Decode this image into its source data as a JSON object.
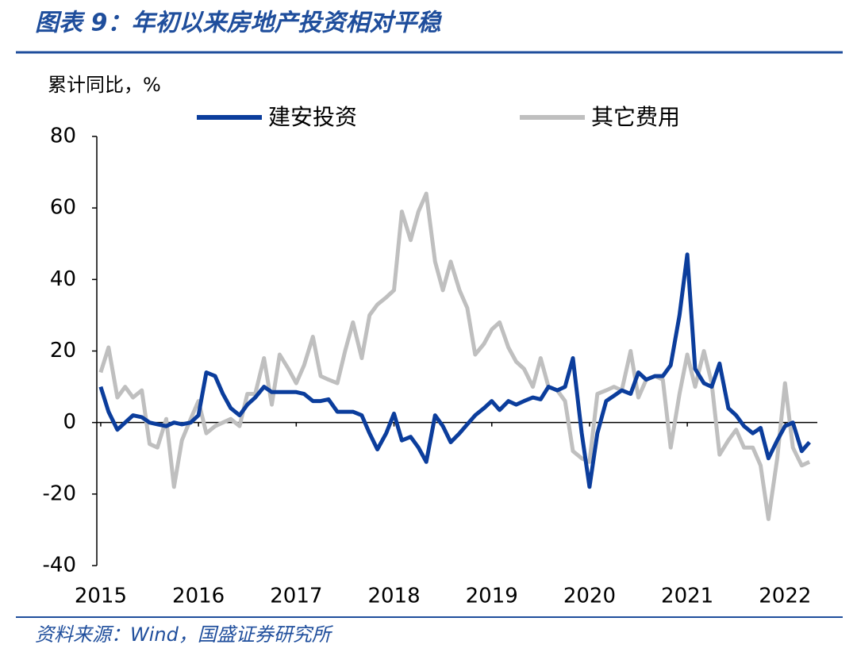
{
  "chart_data": {
    "type": "line",
    "title": "图表 9：年初以来房地产投资相对平稳",
    "y_label": "累计同比，%",
    "source": "资料来源：Wind，国盛证券研究所",
    "x": [
      2015,
      2015.08,
      2015.17,
      2015.25,
      2015.33,
      2015.42,
      2015.5,
      2015.58,
      2015.67,
      2015.75,
      2015.83,
      2015.92,
      2016,
      2016.08,
      2016.17,
      2016.25,
      2016.33,
      2016.42,
      2016.5,
      2016.58,
      2016.67,
      2016.75,
      2016.83,
      2016.92,
      2017,
      2017.08,
      2017.17,
      2017.25,
      2017.33,
      2017.42,
      2017.5,
      2017.58,
      2017.67,
      2017.75,
      2017.83,
      2017.92,
      2018,
      2018.08,
      2018.17,
      2018.25,
      2018.33,
      2018.42,
      2018.5,
      2018.58,
      2018.67,
      2018.75,
      2018.83,
      2018.92,
      2019,
      2019.08,
      2019.17,
      2019.25,
      2019.33,
      2019.42,
      2019.5,
      2019.58,
      2019.67,
      2019.75,
      2019.83,
      2019.92,
      2020,
      2020.08,
      2020.17,
      2020.25,
      2020.33,
      2020.42,
      2020.5,
      2020.58,
      2020.67,
      2020.75,
      2020.83,
      2020.92,
      2021,
      2021.08,
      2021.17,
      2021.25,
      2021.33,
      2021.42,
      2021.5,
      2021.58,
      2021.67,
      2021.75,
      2021.83,
      2021.92,
      2022,
      2022.08,
      2022.17,
      2022.25
    ],
    "series": [
      {
        "name": "建安投资",
        "color": "#0b3d9c",
        "values": [
          10,
          3,
          -2,
          0,
          2,
          1.5,
          0,
          -0.5,
          -1,
          0,
          -0.5,
          0,
          2,
          14,
          13,
          8,
          4,
          2,
          5,
          7,
          10,
          8.5,
          8.5,
          8.5,
          8.5,
          8,
          6,
          6,
          6.5,
          3,
          3,
          3,
          2,
          -3,
          -7.5,
          -3,
          2.5,
          -5,
          -4,
          -7,
          -11,
          2,
          -1,
          -5.5,
          -3,
          -0.5,
          2,
          4,
          6,
          3.5,
          6,
          5,
          6,
          7,
          6.5,
          10,
          9,
          10,
          18,
          -3,
          -18,
          -3,
          6,
          7.5,
          9,
          8,
          14,
          12,
          13,
          13,
          16,
          30,
          47,
          15,
          11,
          10,
          16.5,
          4,
          2,
          -1,
          -3,
          -1.5,
          -10,
          -5,
          -1,
          0,
          -8,
          -5.5
        ]
      },
      {
        "name": "其它费用",
        "color": "#bfbfbf",
        "values": [
          14,
          21,
          7,
          10,
          7,
          9,
          -6,
          -7,
          1,
          -18,
          -5,
          1,
          6,
          -3,
          -1,
          0,
          1,
          -1,
          8,
          8,
          18,
          5,
          19,
          15,
          11,
          16,
          24,
          13,
          12,
          11,
          20,
          28,
          18,
          30,
          33,
          35,
          37,
          59,
          51,
          59,
          64,
          45,
          37,
          45,
          37,
          32,
          19,
          22,
          26,
          28,
          21,
          17,
          15,
          10,
          18,
          10,
          9,
          6,
          -8,
          -10,
          -11,
          8,
          9,
          10,
          9,
          20,
          7,
          12,
          13,
          12,
          -7,
          8,
          19,
          10,
          20,
          11,
          -9,
          -5,
          -2,
          -7,
          -7,
          -12,
          -27,
          -10,
          11,
          -7,
          -12,
          -11
        ]
      }
    ],
    "xlim": [
      2014.96,
      2022.33
    ],
    "xticks": [
      2015,
      2016,
      2017,
      2018,
      2019,
      2020,
      2021,
      2022
    ],
    "ylim": [
      -40,
      80
    ],
    "yticks": [
      -40,
      -20,
      0,
      20,
      40,
      60,
      80
    ],
    "grid": false
  }
}
